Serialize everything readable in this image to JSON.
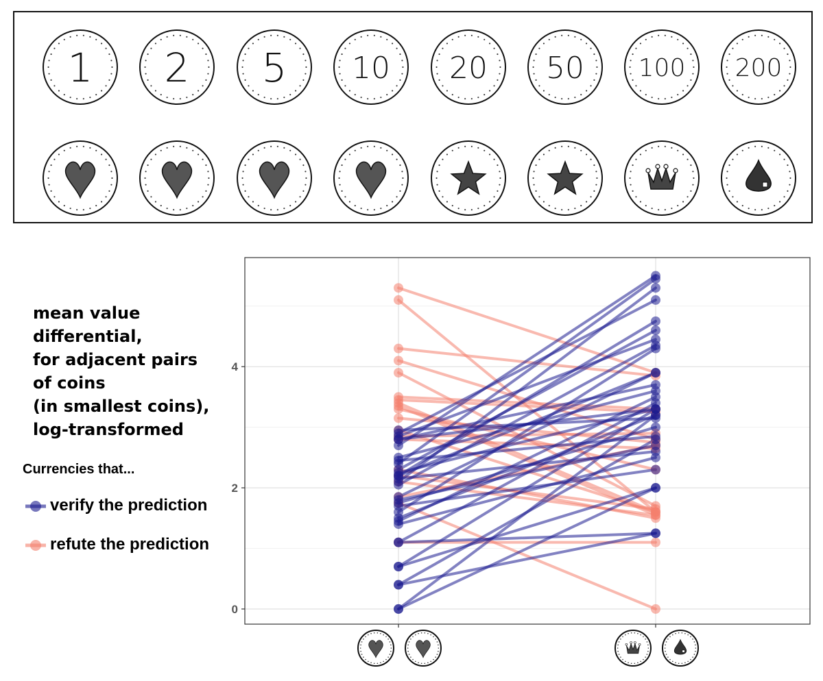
{
  "coin_panel": {
    "top_row": [
      {
        "label": "1"
      },
      {
        "label": "2"
      },
      {
        "label": "5"
      },
      {
        "label": "10"
      },
      {
        "label": "20"
      },
      {
        "label": "50"
      },
      {
        "label": "100"
      },
      {
        "label": "200"
      }
    ],
    "bottom_row": [
      {
        "icon": "heart-icon"
      },
      {
        "icon": "heart-icon"
      },
      {
        "icon": "heart-icon"
      },
      {
        "icon": "heart-icon"
      },
      {
        "icon": "star-icon"
      },
      {
        "icon": "star-icon"
      },
      {
        "icon": "crown-icon"
      },
      {
        "icon": "drop-icon"
      }
    ]
  },
  "y_title_lines": [
    "mean value",
    "differential,",
    "for adjacent pairs",
    "of coins",
    "(in smallest coins),",
    "log-transformed"
  ],
  "legend": {
    "title": "Currencies that...",
    "items": [
      {
        "label": "verify the prediction",
        "color": "#1c1c8f"
      },
      {
        "label": "refute the prediction",
        "color": "#f4806e"
      }
    ]
  },
  "chart_data": {
    "type": "line",
    "x_categories": [
      {
        "icons": [
          "heart-icon",
          "heart-icon"
        ]
      },
      {
        "icons": [
          "crown-icon",
          "drop-icon"
        ]
      }
    ],
    "y_ticks": [
      0,
      2,
      4
    ],
    "ylim": [
      -0.25,
      5.8
    ],
    "grid": true,
    "legend_position": "left",
    "colors": {
      "verify": "#1c1c8f",
      "refute": "#f4806e"
    },
    "series": [
      {
        "group": "verify",
        "pairs": [
          [
            0.0,
            2.0
          ],
          [
            0.0,
            3.2
          ],
          [
            0.4,
            1.25
          ],
          [
            0.4,
            2.8
          ],
          [
            0.7,
            2.0
          ],
          [
            0.7,
            3.3
          ],
          [
            1.1,
            1.25
          ],
          [
            1.1,
            3.4
          ],
          [
            1.45,
            3.5
          ],
          [
            1.4,
            2.5
          ],
          [
            1.5,
            3.2
          ],
          [
            1.6,
            4.3
          ],
          [
            1.7,
            2.3
          ],
          [
            1.75,
            3.0
          ],
          [
            1.85,
            3.9
          ],
          [
            2.05,
            4.35
          ],
          [
            2.1,
            5.3
          ],
          [
            2.15,
            2.6
          ],
          [
            2.2,
            4.75
          ],
          [
            2.25,
            3.3
          ],
          [
            2.3,
            4.6
          ],
          [
            2.4,
            5.45
          ],
          [
            2.45,
            2.85
          ],
          [
            2.5,
            3.6
          ],
          [
            2.7,
            5.5
          ],
          [
            2.8,
            3.7
          ],
          [
            2.85,
            4.45
          ],
          [
            2.9,
            5.1
          ],
          [
            2.95,
            3.15
          ],
          [
            2.8,
            3.3
          ],
          [
            2.2,
            3.9
          ],
          [
            1.8,
            2.7
          ]
        ]
      },
      {
        "group": "refute",
        "pairs": [
          [
            5.3,
            3.9
          ],
          [
            5.1,
            1.6
          ],
          [
            4.3,
            3.85
          ],
          [
            4.1,
            2.8
          ],
          [
            3.9,
            1.7
          ],
          [
            3.5,
            3.3
          ],
          [
            3.45,
            3.25
          ],
          [
            3.4,
            1.6
          ],
          [
            3.35,
            1.55
          ],
          [
            3.3,
            2.3
          ],
          [
            3.15,
            2.75
          ],
          [
            2.95,
            1.6
          ],
          [
            2.85,
            2.9
          ],
          [
            2.8,
            2.65
          ],
          [
            2.3,
            1.5
          ],
          [
            2.2,
            1.65
          ],
          [
            1.75,
            0.0
          ],
          [
            1.1,
            1.1
          ],
          [
            1.85,
            2.7
          ],
          [
            2.1,
            1.55
          ]
        ]
      }
    ]
  }
}
